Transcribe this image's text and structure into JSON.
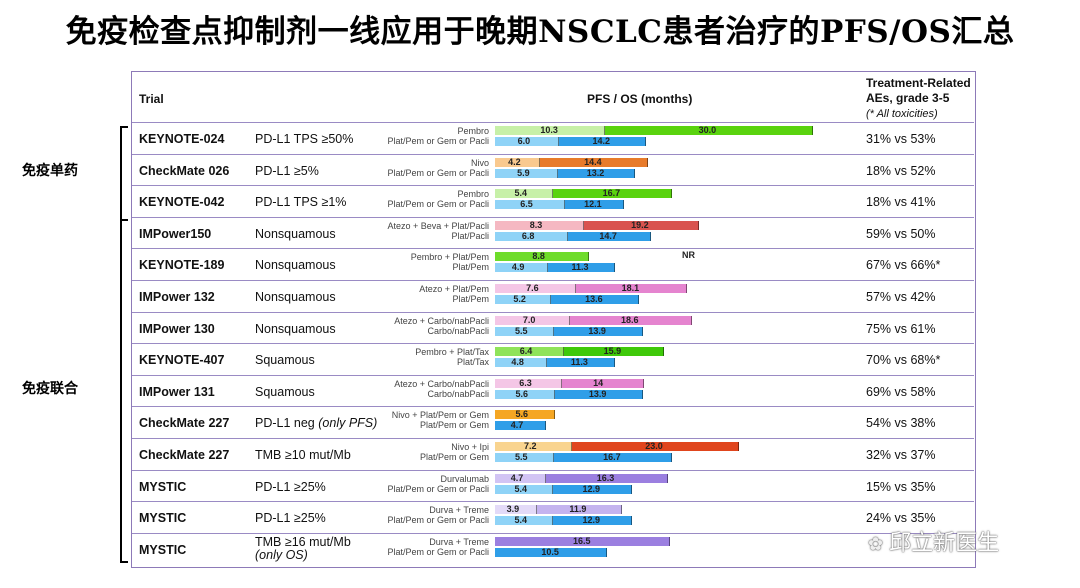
{
  "title": "免疫检查点抑制剂一线应用于晚期NSCLC患者治疗的PFS/OS汇总",
  "headers": {
    "trial": "Trial",
    "pfsos": "PFS / OS (months)",
    "ae_line1": "Treatment-Related",
    "ae_line2": "AEs, grade 3-5",
    "ae_line3": "(* All toxicities)"
  },
  "groups": [
    {
      "label": "免疫单药"
    },
    {
      "label": "免疫联合"
    }
  ],
  "watermark": "邱立新医生",
  "colors": {
    "border": "#8d7ab8",
    "os_bar": "#2f9ee8",
    "os_bar_light": "#8fd3f7"
  },
  "chart_data": {
    "type": "bar",
    "title": "PFS / OS (months)",
    "rows": [
      {
        "trial": "KEYNOTE-024",
        "condition": "PD-L1 TPS ≥50%",
        "ae": "31% vs 53%",
        "exp_arm": "Pembro",
        "ctrl_arm": "Plat/Pem or Gem or Pacli",
        "pfs": [
          {
            "label": "10.3",
            "value": 10.3,
            "color": "#c7f0a8"
          },
          {
            "label": "30.0",
            "value": 30.0,
            "color": "#5ad30f"
          }
        ],
        "os": [
          {
            "label": "6.0",
            "value": 6.0,
            "color": "#8fd3f7"
          },
          {
            "label": "14.2",
            "value": 14.2,
            "color": "#2f9ee8"
          }
        ]
      },
      {
        "trial": "CheckMate 026",
        "condition": "PD-L1 ≥5%",
        "ae": "18% vs 52%",
        "exp_arm": "Nivo",
        "ctrl_arm": "Plat/Pem or Gem or Pacli",
        "pfs": [
          {
            "label": "4.2",
            "value": 4.2,
            "color": "#f9c98f"
          },
          {
            "label": "14.4",
            "value": 14.4,
            "color": "#e87b2b"
          }
        ],
        "os": [
          {
            "label": "5.9",
            "value": 5.9,
            "color": "#8fd3f7"
          },
          {
            "label": "13.2",
            "value": 13.2,
            "color": "#2f9ee8"
          }
        ]
      },
      {
        "trial": "KEYNOTE-042",
        "condition": "PD-L1 TPS ≥1%",
        "ae": "18% vs 41%",
        "exp_arm": "Pembro",
        "ctrl_arm": "Plat/Pem or Gem or Pacli",
        "pfs": [
          {
            "label": "5.4",
            "value": 5.4,
            "color": "#c7f0a8"
          },
          {
            "label": "16.7",
            "value": 16.7,
            "color": "#5ad30f"
          }
        ],
        "os": [
          {
            "label": "6.5",
            "value": 6.5,
            "color": "#8fd3f7"
          },
          {
            "label": "12.1",
            "value": 12.1,
            "color": "#2f9ee8"
          }
        ]
      },
      {
        "trial": "IMPower150",
        "condition": "Nonsquamous",
        "ae": "59% vs 50%",
        "exp_arm": "Atezo + Beva + Plat/Pacli",
        "ctrl_arm": "Plat/Pacli",
        "pfs": [
          {
            "label": "8.3",
            "value": 8.3,
            "color": "#f5b8c2"
          },
          {
            "label": "19.2",
            "value": 19.2,
            "color": "#d9534f"
          }
        ],
        "os": [
          {
            "label": "6.8",
            "value": 6.8,
            "color": "#8fd3f7"
          },
          {
            "label": "14.7",
            "value": 14.7,
            "color": "#2f9ee8"
          }
        ]
      },
      {
        "trial": "KEYNOTE-189",
        "condition": "Nonsquamous",
        "ae": "67% vs 66%*",
        "exp_arm": "Pembro + Plat/Pem",
        "ctrl_arm": "Plat/Pem",
        "nr": "NR",
        "pfs": [
          {
            "label": "8.8",
            "value": 8.8,
            "color": "#6edc2a"
          }
        ],
        "os": [
          {
            "label": "4.9",
            "value": 4.9,
            "color": "#8fd3f7"
          },
          {
            "label": "11.3",
            "value": 11.3,
            "color": "#2f9ee8"
          }
        ]
      },
      {
        "trial": "IMPower 132",
        "condition": "Nonsquamous",
        "ae": "57% vs 42%",
        "exp_arm": "Atezo + Plat/Pem",
        "ctrl_arm": "Plat/Pem",
        "pfs": [
          {
            "label": "7.6",
            "value": 7.6,
            "color": "#f4c6e6"
          },
          {
            "label": "18.1",
            "value": 18.1,
            "color": "#e584cf"
          }
        ],
        "os": [
          {
            "label": "5.2",
            "value": 5.2,
            "color": "#8fd3f7"
          },
          {
            "label": "13.6",
            "value": 13.6,
            "color": "#2f9ee8"
          }
        ]
      },
      {
        "trial": "IMPower 130",
        "condition": "Nonsquamous",
        "ae": "75% vs 61%",
        "exp_arm": "Atezo + Carbo/nabPacli",
        "ctrl_arm": "Carbo/nabPacli",
        "pfs": [
          {
            "label": "7.0",
            "value": 7.0,
            "color": "#f4c6e6"
          },
          {
            "label": "18.6",
            "value": 18.6,
            "color": "#e584cf"
          }
        ],
        "os": [
          {
            "label": "5.5",
            "value": 5.5,
            "color": "#8fd3f7"
          },
          {
            "label": "13.9",
            "value": 13.9,
            "color": "#2f9ee8"
          }
        ]
      },
      {
        "trial": "KEYNOTE-407",
        "condition": "Squamous",
        "ae": "70% vs 68%*",
        "exp_arm": "Pembro + Plat/Tax",
        "ctrl_arm": "Plat/Tax",
        "pfs": [
          {
            "label": "6.4",
            "value": 6.4,
            "color": "#8fe35a"
          },
          {
            "label": "15.9",
            "value": 15.9,
            "color": "#3fc90a"
          }
        ],
        "os": [
          {
            "label": "4.8",
            "value": 4.8,
            "color": "#8fd3f7"
          },
          {
            "label": "11.3",
            "value": 11.3,
            "color": "#2f9ee8"
          }
        ]
      },
      {
        "trial": "IMPower 131",
        "condition": "Squamous",
        "ae": "69% vs 58%",
        "exp_arm": "Atezo + Carbo/nabPacli",
        "ctrl_arm": "Carbo/nabPacli",
        "pfs": [
          {
            "label": "6.3",
            "value": 6.3,
            "color": "#f4c6e6"
          },
          {
            "label": "14",
            "value": 14.0,
            "color": "#e584cf"
          }
        ],
        "os": [
          {
            "label": "5.6",
            "value": 5.6,
            "color": "#8fd3f7"
          },
          {
            "label": "13.9",
            "value": 13.9,
            "color": "#2f9ee8"
          }
        ]
      },
      {
        "trial": "CheckMate 227",
        "condition": "PD-L1 neg",
        "condition_note": "(only PFS)",
        "ae": "54% vs 38%",
        "exp_arm": "Nivo + Plat/Pem or Gem",
        "ctrl_arm": "Plat/Pem or Gem",
        "pfs": [
          {
            "label": "5.6",
            "value": 5.6,
            "color": "#f5a623"
          }
        ],
        "os": [
          {
            "label": "4.7",
            "value": 4.7,
            "color": "#2f9ee8"
          }
        ]
      },
      {
        "trial": "CheckMate 227",
        "condition": "TMB ≥10 mut/Mb",
        "ae": "32% vs 37%",
        "exp_arm": "Nivo + Ipi",
        "ctrl_arm": "Plat/Pem or Gem",
        "pfs": [
          {
            "label": "7.2",
            "value": 7.2,
            "color": "#f9d48f"
          },
          {
            "label": "23.0",
            "value": 23.0,
            "color": "#e0451d"
          }
        ],
        "os": [
          {
            "label": "5.5",
            "value": 5.5,
            "color": "#8fd3f7"
          },
          {
            "label": "16.7",
            "value": 16.7,
            "color": "#2f9ee8"
          }
        ]
      },
      {
        "trial": "MYSTIC",
        "condition": "PD-L1 ≥25%",
        "ae": "15% vs 35%",
        "exp_arm": "Durvalumab",
        "ctrl_arm": "Plat/Pem or Gem or Pacli",
        "pfs": [
          {
            "label": "4.7",
            "value": 4.7,
            "color": "#d2c4f4"
          },
          {
            "label": "16.3",
            "value": 16.3,
            "color": "#9b7fe0"
          }
        ],
        "os": [
          {
            "label": "5.4",
            "value": 5.4,
            "color": "#8fd3f7"
          },
          {
            "label": "12.9",
            "value": 12.9,
            "color": "#2f9ee8"
          }
        ]
      },
      {
        "trial": "MYSTIC",
        "condition": "PD-L1 ≥25%",
        "ae": "24% vs 35%",
        "exp_arm": "Durva + Treme",
        "ctrl_arm": "Plat/Pem or Gem or Pacli",
        "pfs": [
          {
            "label": "3.9",
            "value": 3.9,
            "color": "#e3daf8"
          },
          {
            "label": "11.9",
            "value": 11.9,
            "color": "#c4b3ef"
          }
        ],
        "os": [
          {
            "label": "5.4",
            "value": 5.4,
            "color": "#8fd3f7"
          },
          {
            "label": "12.9",
            "value": 12.9,
            "color": "#2f9ee8"
          }
        ]
      },
      {
        "trial": "MYSTIC",
        "condition": "TMB ≥16 mut/Mb",
        "condition_note": "(only OS)",
        "ae": "",
        "exp_arm": "Durva + Treme",
        "ctrl_arm": "Plat/Pem or Gem or Pacli",
        "pfs": [
          {
            "label": "16.5",
            "value": 16.5,
            "color": "#9b7fe0"
          }
        ],
        "os": [
          {
            "label": "10.5",
            "value": 10.5,
            "color": "#2f9ee8"
          }
        ]
      }
    ]
  }
}
